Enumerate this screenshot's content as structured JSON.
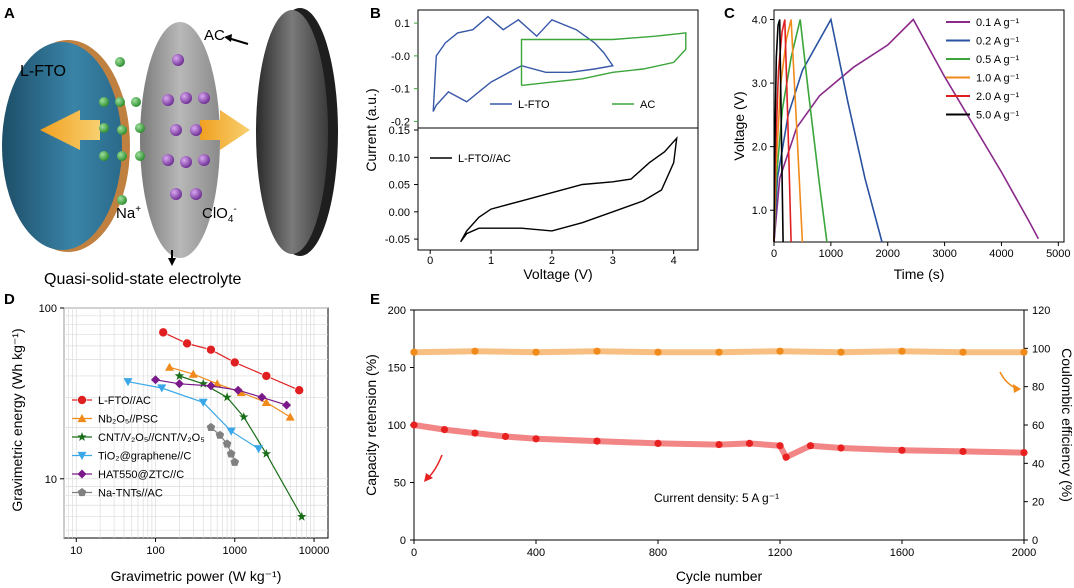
{
  "panels": {
    "A": {
      "label": "A",
      "texts": {
        "electrode_left": "L-FTO",
        "electrode_right": "AC",
        "cation": "Na",
        "cation_charge": "+",
        "anion": "ClO",
        "anion_sub": "4",
        "anion_charge": "-",
        "electrolyte": "Quasi-solid-state electrolyte"
      },
      "colors": {
        "lfto": "#2f6e8c",
        "electrolyte": "#9a9a9a",
        "ac": "#4a4a4a",
        "na": "#3aa53a",
        "clo4": "#8a4fb0",
        "arrow": "#f0a020",
        "lfto_label": "#e02020"
      }
    },
    "B": {
      "label": "B",
      "ylabel": "Current (a.u.)",
      "xlabel": "Voltage (V)"
    },
    "C": {
      "label": "C"
    },
    "D": {
      "label": "D"
    },
    "E": {
      "label": "E",
      "annotation": "Current density: 5 A g⁻¹"
    }
  },
  "chart_data": [
    {
      "id": "B-top",
      "type": "line",
      "xlim": [
        -0.2,
        4.4
      ],
      "ylim": [
        -0.22,
        0.14
      ],
      "yticks": [
        0.1,
        0.0,
        -0.1,
        -0.2
      ],
      "ytick_labels": [
        "0.1",
        "-0.0",
        "-0.1",
        "-0.2"
      ],
      "series": [
        {
          "name": "L-FTO",
          "color": "#3858a8",
          "x": [
            0.05,
            0.1,
            0.3,
            0.6,
            1.0,
            1.5,
            1.9,
            2.3,
            2.7,
            3.0,
            2.85,
            2.7,
            2.4,
            2.0,
            1.75,
            1.45,
            1.2,
            0.95,
            0.7,
            0.45,
            0.25,
            0.1,
            0.05
          ],
          "y": [
            -0.17,
            -0.15,
            -0.11,
            -0.14,
            -0.08,
            -0.03,
            -0.05,
            -0.05,
            -0.04,
            -0.03,
            0.01,
            0.04,
            0.08,
            0.11,
            0.06,
            0.11,
            0.08,
            0.12,
            0.08,
            0.07,
            0.04,
            0.0,
            -0.17
          ]
        },
        {
          "name": "AC",
          "color": "#3aa53a",
          "x": [
            1.5,
            2.0,
            2.5,
            3.0,
            3.5,
            4.0,
            4.2,
            4.2,
            3.7,
            3.0,
            2.5,
            2.0,
            1.5,
            1.5
          ],
          "y": [
            -0.09,
            -0.08,
            -0.07,
            -0.05,
            -0.04,
            -0.02,
            0.02,
            0.07,
            0.06,
            0.05,
            0.05,
            0.05,
            0.05,
            -0.09
          ]
        }
      ]
    },
    {
      "id": "B-bottom",
      "type": "line",
      "xlim": [
        -0.2,
        4.4
      ],
      "ylim": [
        -0.07,
        0.15
      ],
      "xticks": [
        0,
        1,
        2,
        3,
        4
      ],
      "yticks": [
        0.15,
        0.1,
        0.05,
        0.0,
        -0.05
      ],
      "ytick_labels": [
        "0.15",
        "0.10",
        "0.05",
        "0.00",
        "-0.05"
      ],
      "series": [
        {
          "name": "L-FTO//AC",
          "color": "#000000",
          "x": [
            0.5,
            0.6,
            0.8,
            1.0,
            1.5,
            2.0,
            2.5,
            3.0,
            3.5,
            3.8,
            4.0,
            4.05,
            3.85,
            3.6,
            3.3,
            3.0,
            2.5,
            2.0,
            1.5,
            1.0,
            0.8,
            0.6,
            0.5
          ],
          "y": [
            -0.055,
            -0.04,
            -0.03,
            -0.03,
            -0.03,
            -0.035,
            -0.02,
            0.0,
            0.02,
            0.04,
            0.09,
            0.135,
            0.11,
            0.09,
            0.06,
            0.055,
            0.05,
            0.035,
            0.02,
            0.005,
            -0.01,
            -0.035,
            -0.055
          ]
        }
      ]
    },
    {
      "id": "C",
      "type": "line",
      "xlabel": "Time (s)",
      "ylabel": "Voltage (V)",
      "xlim": [
        0,
        5100
      ],
      "ylim": [
        0.5,
        4.15
      ],
      "xticks": [
        0,
        1000,
        2000,
        3000,
        4000,
        5000
      ],
      "yticks": [
        1.0,
        2.0,
        3.0,
        4.0
      ],
      "ytick_labels": [
        "1.0",
        "2.0",
        "3.0",
        "4.0"
      ],
      "series": [
        {
          "name": "0.1 A g⁻¹",
          "color": "#8a2a8a",
          "x": [
            0,
            100,
            400,
            800,
            1400,
            2000,
            2450,
            3000,
            3500,
            4000,
            4500,
            4650
          ],
          "y": [
            0.5,
            1.5,
            2.3,
            2.8,
            3.25,
            3.6,
            4.0,
            3.1,
            2.35,
            1.6,
            0.8,
            0.55
          ]
        },
        {
          "name": "0.2 A g⁻¹",
          "color": "#2a52a0",
          "x": [
            0,
            60,
            250,
            500,
            750,
            1000,
            1300,
            1600,
            1900
          ],
          "y": [
            0.5,
            1.5,
            2.5,
            3.2,
            3.6,
            4.0,
            2.7,
            1.5,
            0.5
          ]
        },
        {
          "name": "0.5 A g⁻¹",
          "color": "#3aa53a",
          "x": [
            0,
            40,
            150,
            300,
            460,
            600,
            800,
            930
          ],
          "y": [
            0.5,
            1.5,
            2.6,
            3.4,
            4.0,
            2.9,
            1.4,
            0.5
          ]
        },
        {
          "name": "1.0 A g⁻¹",
          "color": "#f08a1a",
          "x": [
            0,
            30,
            120,
            220,
            300,
            400,
            500
          ],
          "y": [
            0.5,
            1.6,
            3.0,
            3.7,
            4.0,
            2.3,
            0.5
          ]
        },
        {
          "name": "2.0 A g⁻¹",
          "color": "#e02020",
          "x": [
            0,
            20,
            80,
            140,
            190,
            250,
            300
          ],
          "y": [
            0.5,
            1.7,
            3.2,
            3.8,
            4.0,
            2.2,
            0.5
          ]
        },
        {
          "name": "5.0 A g⁻¹",
          "color": "#000000",
          "x": [
            0,
            10,
            40,
            70,
            100,
            130,
            160
          ],
          "y": [
            0.5,
            1.8,
            3.4,
            3.9,
            4.0,
            2.2,
            0.5
          ]
        }
      ]
    },
    {
      "id": "D",
      "type": "scatter",
      "xlabel": "Gravimetric power (W kg⁻¹)",
      "ylabel": "Gravimetric energy (Wh kg⁻¹)",
      "xscale": "log",
      "yscale": "log",
      "xlim": [
        7,
        15000
      ],
      "ylim": [
        4.5,
        100
      ],
      "xticks": [
        10,
        100,
        1000,
        10000
      ],
      "xtick_labels": [
        "10",
        "100",
        "1000",
        "10000"
      ],
      "yticks": [
        10,
        100
      ],
      "ytick_labels": [
        "10",
        "100"
      ],
      "series": [
        {
          "name": "L-FTO//AC",
          "color": "#e02020",
          "marker": "circle",
          "x": [
            125,
            250,
            500,
            1000,
            2500,
            6500
          ],
          "y": [
            72,
            62,
            57,
            48,
            40,
            33
          ]
        },
        {
          "name": "Nb₂O₅//PSC",
          "color": "#f08a1a",
          "marker": "triangle-up",
          "x": [
            150,
            300,
            600,
            1200,
            2500,
            5000
          ],
          "y": [
            45,
            41,
            36,
            32,
            28,
            23
          ]
        },
        {
          "name": "CNT/V₂O₅//CNT/V₂O₅",
          "color": "#1a6e1a",
          "marker": "star",
          "x": [
            200,
            400,
            800,
            1300,
            2500,
            7000
          ],
          "y": [
            40,
            36,
            30,
            23,
            14,
            6
          ]
        },
        {
          "name": "TiO₂@graphene//C",
          "color": "#3aa8e8",
          "marker": "triangle-down",
          "x": [
            45,
            120,
            400,
            900,
            2000
          ],
          "y": [
            37,
            34,
            28,
            19,
            15
          ]
        },
        {
          "name": "HAT550@ZTC//C",
          "color": "#7a1a8a",
          "marker": "diamond",
          "x": [
            100,
            200,
            500,
            1100,
            2200,
            4500
          ],
          "y": [
            38,
            36,
            35,
            33,
            30,
            27
          ]
        },
        {
          "name": "Na-TNTs//AC",
          "color": "#808080",
          "marker": "pentagon",
          "x": [
            500,
            650,
            800,
            900,
            1000
          ],
          "y": [
            20,
            18,
            16,
            14,
            12.5
          ]
        }
      ]
    },
    {
      "id": "E",
      "type": "scatter",
      "xlabel": "Cycle number",
      "ylabel": "Capacity retension (%)",
      "ylabel_right": "Coulombic efficiency (%)",
      "xlim": [
        0,
        2000
      ],
      "ylim": [
        0,
        200
      ],
      "ylim_right": [
        0,
        120
      ],
      "xticks": [
        0,
        400,
        800,
        1200,
        1600,
        2000
      ],
      "yticks": [
        0,
        50,
        100,
        150,
        200
      ],
      "yticks_right": [
        0,
        20,
        40,
        60,
        80,
        100,
        120
      ],
      "series": [
        {
          "name": "Capacity retension",
          "color": "#e82020",
          "axis": "left",
          "x": [
            0,
            100,
            200,
            300,
            400,
            600,
            800,
            1000,
            1100,
            1200,
            1220,
            1300,
            1400,
            1600,
            1800,
            2000
          ],
          "y": [
            100,
            96,
            93,
            90,
            88,
            86,
            84,
            83,
            84,
            82,
            72,
            82,
            80,
            78,
            77,
            76
          ]
        },
        {
          "name": "Coulombic efficiency",
          "color": "#f08a1a",
          "axis": "right",
          "x": [
            0,
            200,
            400,
            600,
            800,
            1000,
            1200,
            1400,
            1600,
            1800,
            2000
          ],
          "y": [
            98,
            98.5,
            98,
            98.5,
            98,
            98,
            98.5,
            98,
            98.5,
            98,
            98
          ]
        }
      ]
    }
  ]
}
